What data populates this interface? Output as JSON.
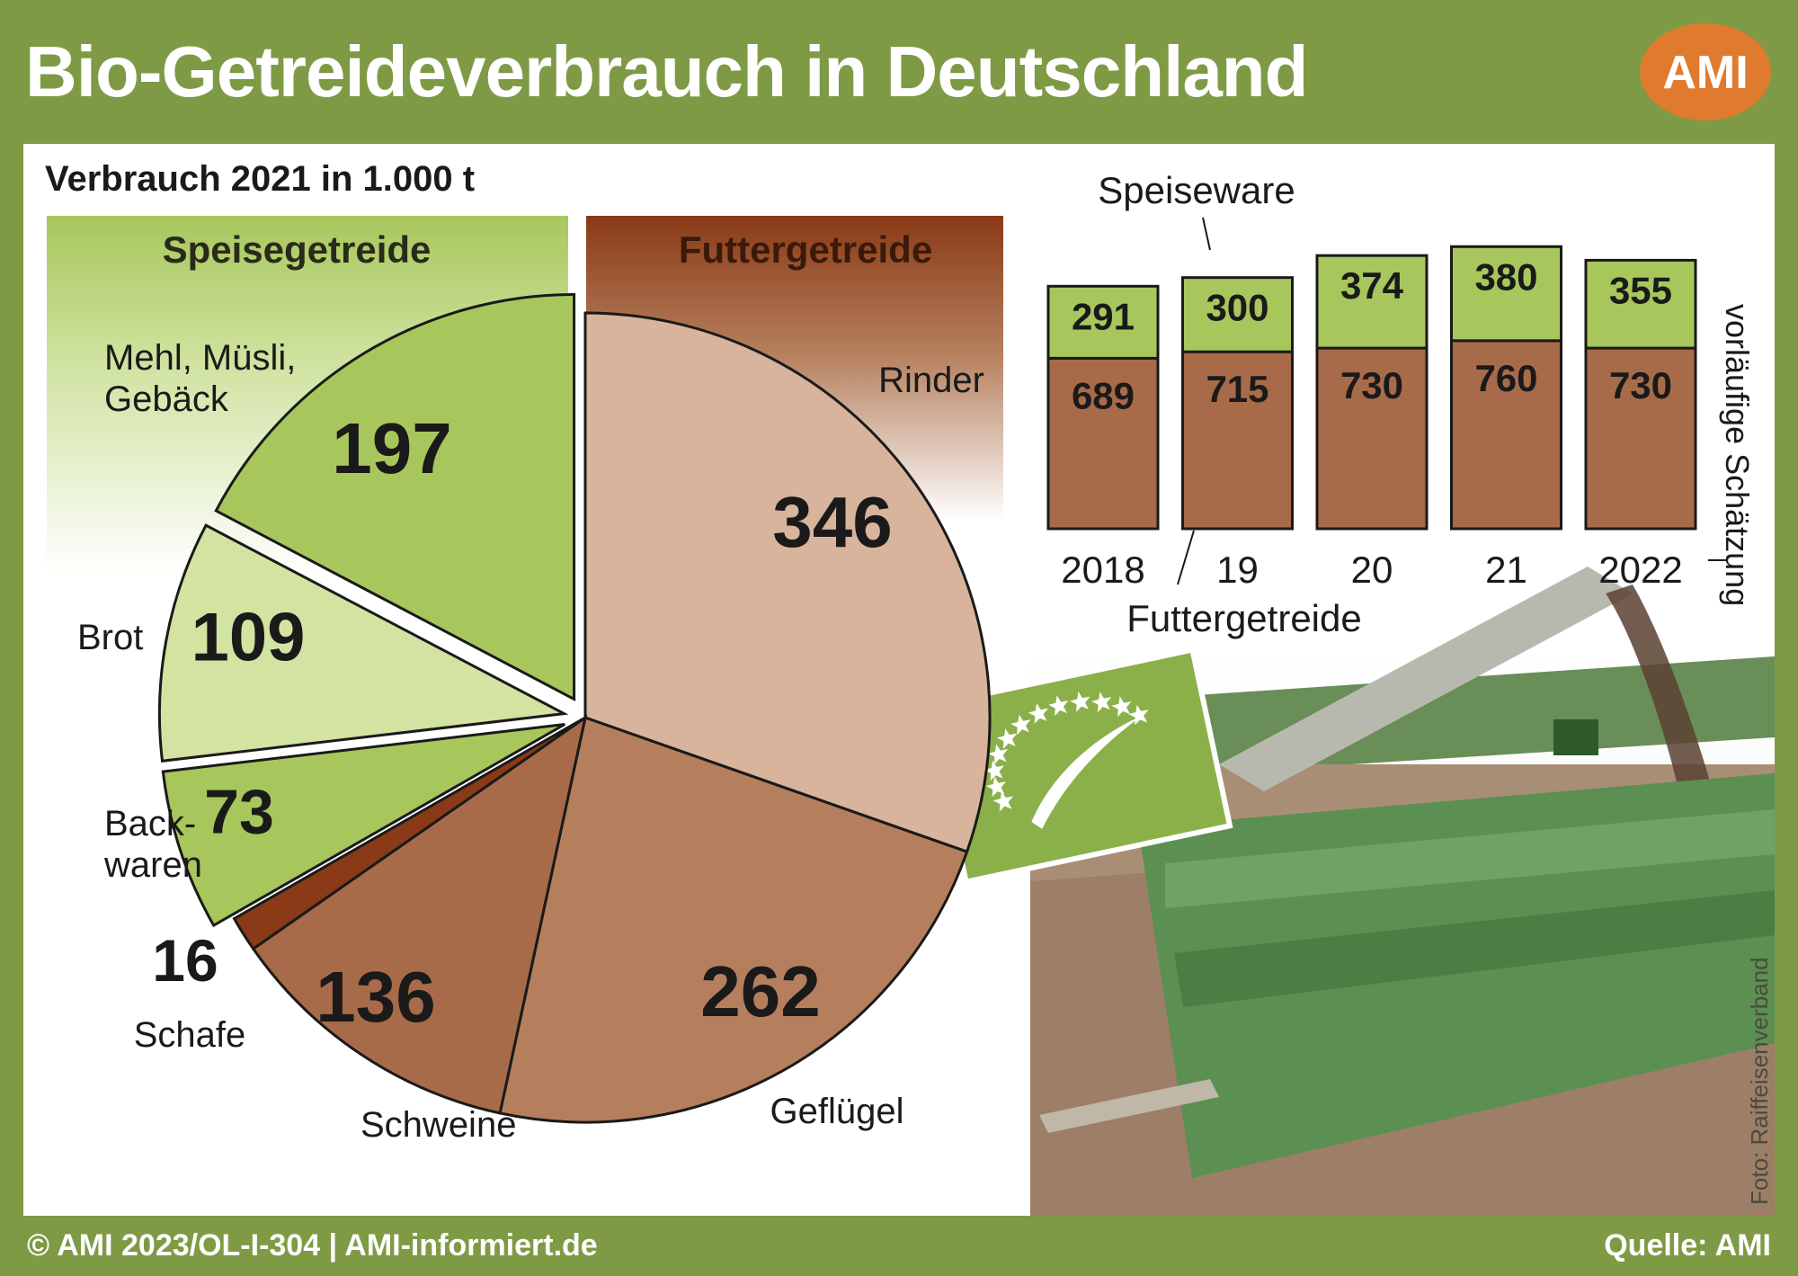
{
  "title": "Bio-Getreideverbrauch in Deutschland",
  "logo_text": "AMI",
  "footer": {
    "left": "© AMI 2023/OL-I-304 | AMI-informiert.de",
    "right": "Quelle: AMI"
  },
  "photo_credit": "Foto: Raiffeisenverband",
  "colors": {
    "frame": "#7f9a45",
    "speise": "#a7c75c",
    "brot": "#d2e3a2",
    "rinder": "#d8b49c",
    "gefluegel": "#b57f5d",
    "schweine": "#a86b49",
    "schafe": "#8a3a16",
    "logo": "#e07a2f"
  },
  "chart_data": [
    {
      "type": "pie",
      "title": "Verbrauch 2021 in 1.000 t",
      "groups": [
        {
          "name": "Speisegetreide",
          "slices": [
            "Mehl, Müsli, Gebäck",
            "Brot",
            "Backwaren"
          ]
        },
        {
          "name": "Futtergetreide",
          "slices": [
            "Rinder",
            "Geflügel",
            "Schweine",
            "Schafe"
          ]
        }
      ],
      "slices": [
        {
          "label": "Rinder",
          "value": 346,
          "value_text": "346",
          "group": "Futtergetreide"
        },
        {
          "label": "Geflügel",
          "value": 262,
          "value_text": "262",
          "group": "Futtergetreide"
        },
        {
          "label": "Schweine",
          "value": 136,
          "value_text": "136",
          "group": "Futtergetreide"
        },
        {
          "label": "Schafe",
          "value": 16,
          "value_text": "16",
          "group": "Futtergetreide"
        },
        {
          "label": "Back-\nwaren",
          "value": 73,
          "value_text": "73",
          "group": "Speisegetreide"
        },
        {
          "label": "Brot",
          "value": 109,
          "value_text": "109",
          "group": "Speisegetreide"
        },
        {
          "label": "Mehl, Müsli,\nGebäck",
          "value": 197,
          "value_text": "197",
          "group": "Speisegetreide"
        }
      ]
    },
    {
      "type": "bar",
      "stacked": true,
      "categories": [
        "2018",
        "19",
        "20",
        "21",
        "2022"
      ],
      "series": [
        {
          "name": "Futtergetreide",
          "values": [
            689,
            715,
            730,
            760,
            730
          ]
        },
        {
          "name": "Speiseware",
          "values": [
            291,
            300,
            374,
            380,
            355
          ]
        }
      ],
      "annotation": "vorläufige Schätzung"
    }
  ]
}
